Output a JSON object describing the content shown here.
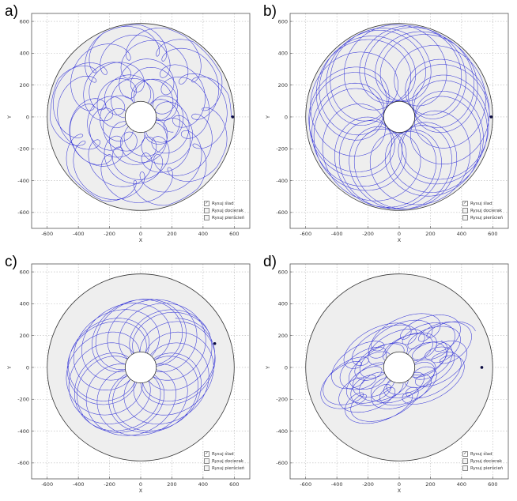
{
  "panels": [
    {
      "label": "a)",
      "legend": [
        {
          "label": "Rysuj ślad",
          "checked": true
        },
        {
          "label": "Rysuj docierak",
          "checked": false
        },
        {
          "label": "Rysuj pierścień",
          "checked": false
        }
      ]
    },
    {
      "label": "b)",
      "legend": [
        {
          "label": "Rysuj ślad",
          "checked": true
        },
        {
          "label": "Rysuj docierak",
          "checked": false
        },
        {
          "label": "Rysuj pierścień",
          "checked": false
        }
      ]
    },
    {
      "label": "c)",
      "legend": [
        {
          "label": "Rysuj ślad",
          "checked": true
        },
        {
          "label": "Rysuj docierak",
          "checked": false
        },
        {
          "label": "Rysuj pierścień",
          "checked": false
        }
      ]
    },
    {
      "label": "d)",
      "legend": [
        {
          "label": "Rysuj ślad",
          "checked": true
        },
        {
          "label": "Rysuj docierak",
          "checked": false
        },
        {
          "label": "Rysuj pierścień",
          "checked": false
        }
      ]
    }
  ],
  "chart_data": [
    {
      "type": "line",
      "panel": "a)",
      "xlabel": "X",
      "ylabel": "Y",
      "xlim": [
        -700,
        700
      ],
      "ylim": [
        -700,
        650
      ],
      "xticks": [
        -600,
        -400,
        -200,
        0,
        200,
        400,
        600
      ],
      "yticks": [
        600,
        400,
        200,
        0,
        -200,
        -400,
        -600
      ],
      "grid": true,
      "disk_outer_radius": 600,
      "disk_inner_radius": 100,
      "trace": {
        "pattern": "concentric loops",
        "loop_radius": 100,
        "orbit_min": 150,
        "orbit_max": 500,
        "ellipse_ratio": 1.0,
        "ellipse_tilt_deg": 0,
        "turns": 9,
        "color": "#3a3ad8"
      },
      "marker": {
        "x": 590,
        "y": 0
      }
    },
    {
      "type": "line",
      "panel": "b)",
      "xlabel": "X",
      "ylabel": "Y",
      "xlim": [
        -700,
        700
      ],
      "ylim": [
        -700,
        650
      ],
      "xticks": [
        -600,
        -400,
        -200,
        0,
        200,
        400,
        600
      ],
      "yticks": [
        600,
        400,
        200,
        0,
        -200,
        -400,
        -600
      ],
      "grid": true,
      "disk_outer_radius": 600,
      "disk_inner_radius": 100,
      "trace": {
        "pattern": "rosette",
        "loop_radius": 240,
        "orbit_min": 340,
        "orbit_max": 340,
        "ellipse_ratio": 1.0,
        "ellipse_tilt_deg": 0,
        "turns": 5,
        "color": "#3a3ad8"
      },
      "marker": {
        "x": 590,
        "y": 0
      }
    },
    {
      "type": "line",
      "panel": "c)",
      "xlabel": "X",
      "ylabel": "Y",
      "xlim": [
        -700,
        700
      ],
      "ylim": [
        -700,
        650
      ],
      "xticks": [
        -600,
        -400,
        -200,
        0,
        200,
        400,
        600
      ],
      "yticks": [
        600,
        400,
        200,
        0,
        -200,
        -400,
        -600
      ],
      "grid": true,
      "disk_outer_radius": 600,
      "disk_inner_radius": 100,
      "trace": {
        "pattern": "offset loops",
        "loop_radius": 230,
        "orbit_min": 260,
        "orbit_max": 260,
        "ellipse_ratio": 0.85,
        "ellipse_tilt_deg": 25,
        "turns": 4,
        "color": "#3a3ad8"
      },
      "marker": {
        "x": 475,
        "y": 150
      }
    },
    {
      "type": "line",
      "panel": "d)",
      "xlabel": "X",
      "ylabel": "Y",
      "xlim": [
        -700,
        700
      ],
      "ylim": [
        -700,
        650
      ],
      "xticks": [
        -600,
        -400,
        -200,
        0,
        200,
        400,
        600
      ],
      "yticks": [
        600,
        400,
        200,
        0,
        -200,
        -400,
        -600
      ],
      "grid": true,
      "disk_outer_radius": 600,
      "disk_inner_radius": 100,
      "trace": {
        "pattern": "elliptical loops",
        "loop_radius": 120,
        "orbit_min": 200,
        "orbit_max": 420,
        "ellipse_ratio": 0.55,
        "ellipse_tilt_deg": 25,
        "turns": 7,
        "color": "#3a3ad8"
      },
      "marker": {
        "x": 530,
        "y": 0
      }
    }
  ]
}
